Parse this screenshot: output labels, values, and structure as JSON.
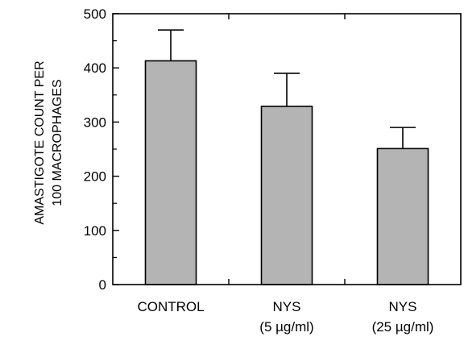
{
  "chart_data": {
    "type": "bar",
    "title": "",
    "ylabel": [
      "AMASTIGOTE COUNT PER",
      "100 MACROPHAGES"
    ],
    "xlabel": "",
    "categories": [
      [
        "CONTROL"
      ],
      [
        "NYS",
        "(5 µg/ml)"
      ],
      [
        "NYS",
        "(25 µg/ml)"
      ]
    ],
    "values": [
      413,
      329,
      251
    ],
    "errors": [
      57,
      61,
      39
    ],
    "ylim": [
      0,
      500
    ],
    "yticks": [
      0,
      100,
      200,
      300,
      400,
      500
    ],
    "grid": false,
    "legend": "none",
    "colors": {
      "bar_fill": "#b4b4b4",
      "stroke": "#000000"
    }
  }
}
